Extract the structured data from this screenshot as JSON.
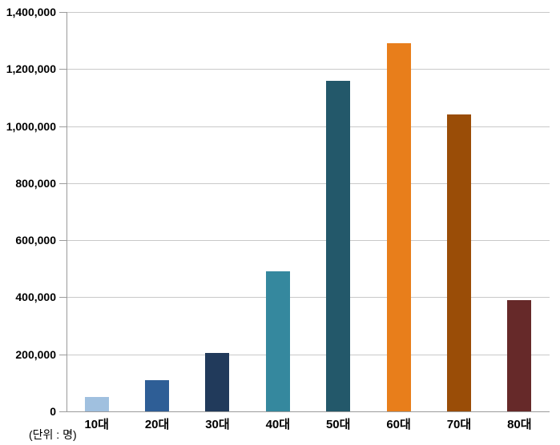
{
  "chart_data": {
    "type": "bar",
    "title": "",
    "categories": [
      "10대",
      "20대",
      "30대",
      "40대",
      "50대",
      "60대",
      "70대",
      "80대"
    ],
    "values": [
      50000,
      110000,
      205000,
      490000,
      1160000,
      1290000,
      1040000,
      390000
    ],
    "bar_colors": [
      "#A0C0DF",
      "#2E5E96",
      "#213A5B",
      "#35889E",
      "#23586A",
      "#E87E1B",
      "#9A4D07",
      "#662929"
    ],
    "ylim": [
      0,
      1400000
    ],
    "ytick_step": 200000,
    "ytick_labels": [
      "0",
      "200,000",
      "400,000",
      "600,000",
      "800,000",
      "1,000,000",
      "1,200,000",
      "1,400,000"
    ],
    "xlabel": "",
    "ylabel": "",
    "legend": null,
    "grid": true,
    "unit_note": "(단위 : 명)",
    "colors": {
      "gridline": "#C9C9C9",
      "axis": "#9B9B9B",
      "label_text": "#000000",
      "background": "#FFFFFF"
    }
  }
}
